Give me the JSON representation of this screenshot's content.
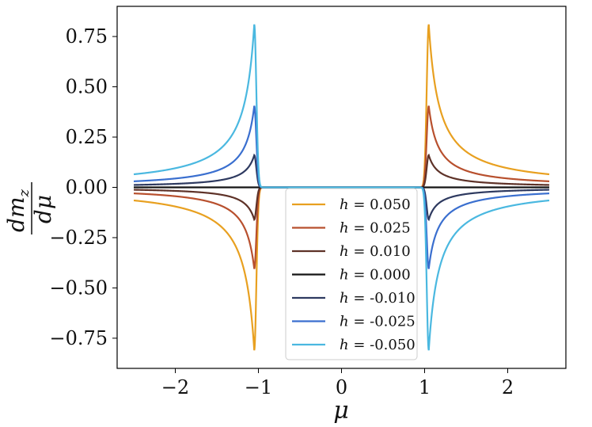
{
  "chart_data": {
    "type": "line",
    "xlabel": "μ",
    "ylabel_num": "dm",
    "ylabel_sub": "z",
    "ylabel_den": "dμ",
    "xlim": [
      -2.7,
      2.7
    ],
    "ylim": [
      -0.9,
      0.9
    ],
    "xticks": [
      -2,
      -1,
      0,
      1,
      2
    ],
    "xtick_labels": [
      "−2",
      "−1",
      "0",
      "1",
      "2"
    ],
    "yticks": [
      0.75,
      0.5,
      0.25,
      0.0,
      -0.25,
      -0.5,
      -0.75
    ],
    "ytick_labels": [
      "0.75",
      "0.50",
      "0.25",
      "0.00",
      "−0.25",
      "−0.50",
      "−0.75"
    ],
    "grid": false,
    "legend_position": "lower-center",
    "series": [
      {
        "name": "h = 0.050",
        "h_label": "h",
        "value_label": "= 0.050",
        "color": "#e8a020",
        "h": 0.05,
        "peak": 0.81,
        "tail_at_2_5": 0.065
      },
      {
        "name": "h = 0.025",
        "h_label": "h",
        "value_label": "= 0.025",
        "color": "#b8502e",
        "h": 0.025,
        "peak": 0.405,
        "tail_at_2_5": 0.03
      },
      {
        "name": "h = 0.010",
        "h_label": "h",
        "value_label": "= 0.010",
        "color": "#5e3228",
        "h": 0.01,
        "peak": 0.16,
        "tail_at_2_5": 0.012
      },
      {
        "name": "h = 0.000",
        "h_label": "h",
        "value_label": "= 0.000",
        "color": "#141414",
        "h": 0.0,
        "peak": 0.0,
        "tail_at_2_5": 0.0
      },
      {
        "name": "h = -0.010",
        "h_label": "h",
        "value_label": "= -0.010",
        "color": "#2e3a60",
        "h": -0.01,
        "peak": -0.16,
        "tail_at_2_5": -0.012
      },
      {
        "name": "h = -0.025",
        "h_label": "h",
        "value_label": "= -0.025",
        "color": "#3a6fcf",
        "h": -0.025,
        "peak": -0.405,
        "tail_at_2_5": -0.03
      },
      {
        "name": "h = -0.050",
        "h_label": "h",
        "value_label": "= -0.050",
        "color": "#4ab8e0",
        "h": -0.05,
        "peak": -0.81,
        "tail_at_2_5": -0.065
      }
    ],
    "x_range": [
      -2.5,
      2.5
    ],
    "peak_mu": 1.05
  }
}
